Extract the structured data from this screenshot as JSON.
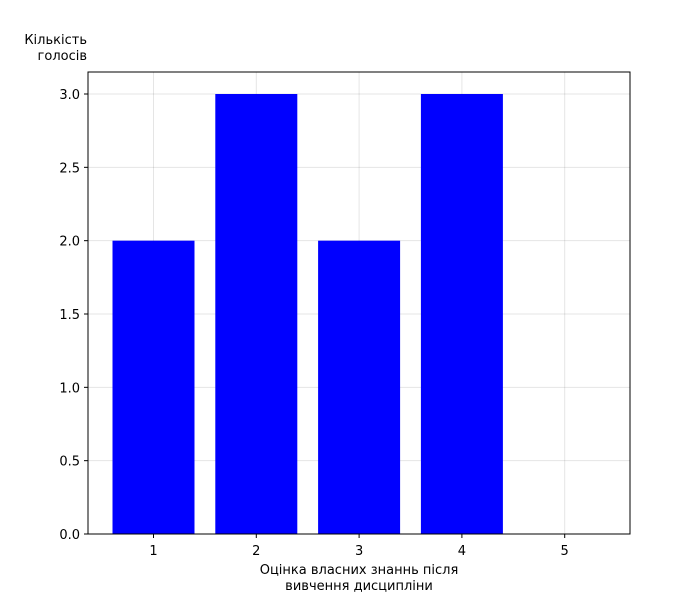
{
  "chart_data": {
    "type": "bar",
    "categories": [
      "1",
      "2",
      "3",
      "4",
      "5"
    ],
    "values": [
      2,
      3,
      2,
      3,
      0
    ],
    "bar_color": "#0000ff",
    "title": "",
    "ylabel": [
      "Кількість",
      "голосів"
    ],
    "xlabel": [
      "Оцінка власних знаннь після",
      "вивчення дисципліни"
    ],
    "yticks": [
      "0.0",
      "0.5",
      "1.0",
      "1.5",
      "2.0",
      "2.5",
      "3.0"
    ],
    "ylim": [
      0,
      3.15
    ],
    "grid": true
  }
}
